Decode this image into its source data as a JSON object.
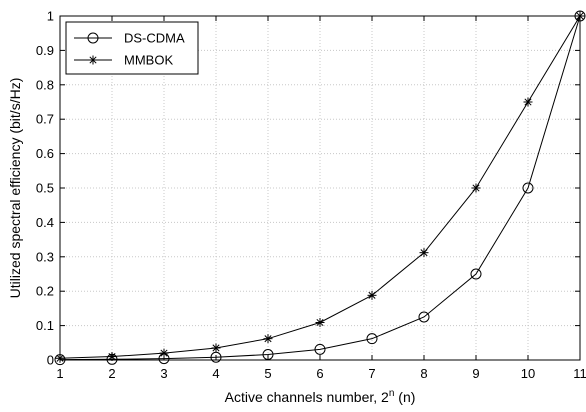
{
  "chart_data": {
    "type": "line",
    "title": "",
    "xlabel": "Active channels number, 2",
    "xlabel_superscript": "n",
    "xlabel_suffix": " (n)",
    "ylabel": "Utilized spectral efficiency (bit/s/Hz)",
    "x": [
      1,
      2,
      3,
      4,
      5,
      6,
      7,
      8,
      9,
      10,
      11
    ],
    "xlim": [
      1,
      11
    ],
    "ylim": [
      0,
      1
    ],
    "xticks": [
      "1",
      "2",
      "3",
      "4",
      "5",
      "6",
      "7",
      "8",
      "9",
      "10",
      "11"
    ],
    "yticks": [
      "0",
      "0.1",
      "0.2",
      "0.3",
      "0.4",
      "0.5",
      "0.6",
      "0.7",
      "0.8",
      "0.9",
      "1"
    ],
    "grid": true,
    "legend_position": "top-left",
    "series": [
      {
        "name": "DS-CDMA",
        "marker": "circle",
        "color": "#000000",
        "values": [
          0.001,
          0.002,
          0.004,
          0.008,
          0.016,
          0.031,
          0.062,
          0.125,
          0.25,
          0.5,
          1.0
        ]
      },
      {
        "name": "MMBOK",
        "marker": "asterisk",
        "color": "#000000",
        "values": [
          0.005,
          0.01,
          0.02,
          0.035,
          0.062,
          0.109,
          0.188,
          0.312,
          0.5,
          0.75,
          1.0
        ]
      }
    ]
  }
}
